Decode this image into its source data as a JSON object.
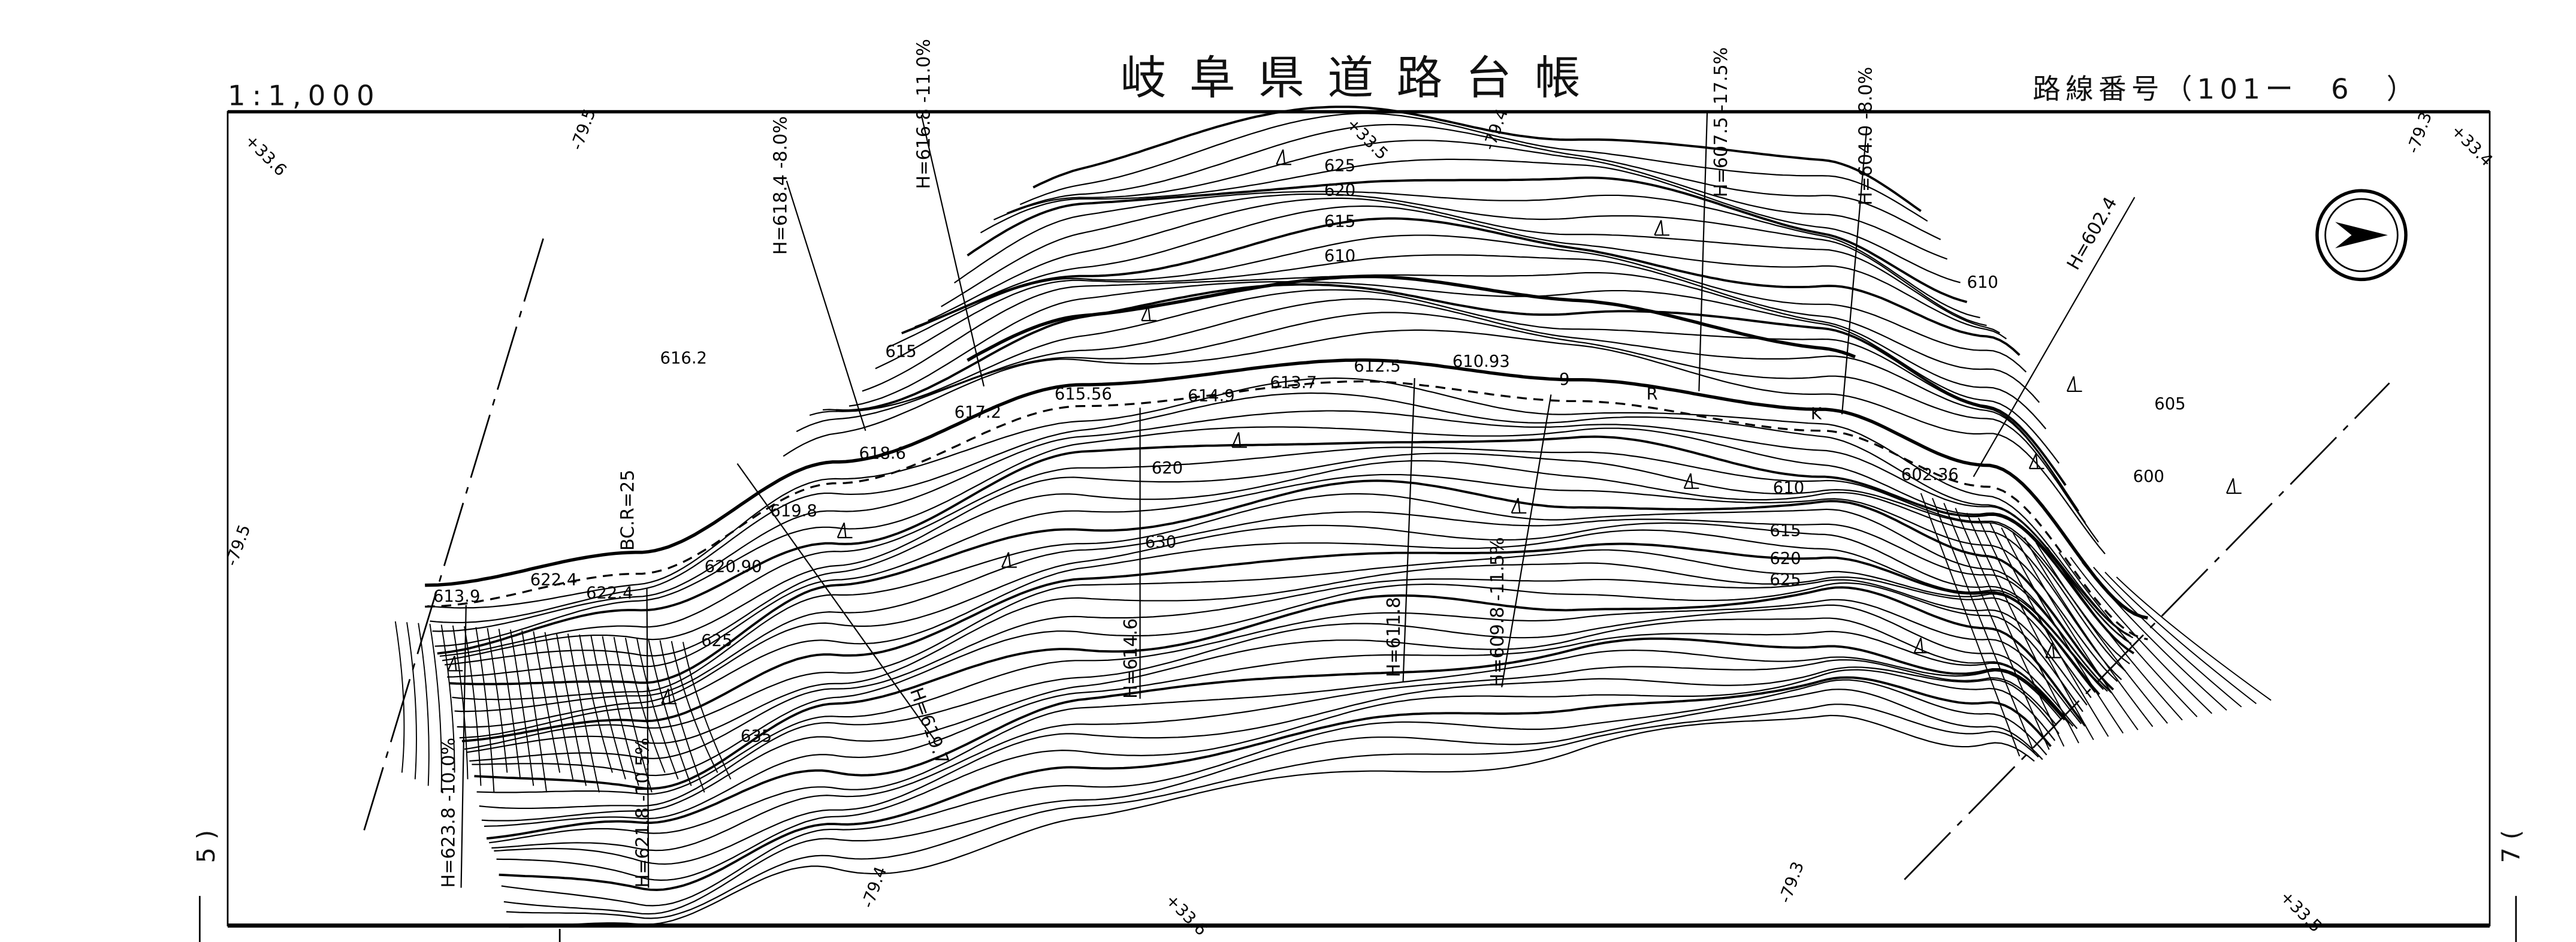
{
  "header": {
    "scale": "1:1,000",
    "title": "岐阜県道路台帳",
    "route_number": "路線番号（101ー　6　）"
  },
  "side_marks": {
    "left": "5 )",
    "right": "7 ("
  },
  "grid_labels": [
    "+33.6",
    "-79.5",
    "+33.5",
    "-79.4",
    "-79.3",
    "+33.4",
    "-79.5",
    "-79.4",
    "+33.6",
    "-79.3",
    "+33.5"
  ],
  "station_labels": [
    "H=616.8 -11.0%",
    "H=618.4 -8.0%",
    "H=607.5 -17.5%",
    "H=604.0 -8.0%",
    "H=602.4",
    "H=614.6",
    "H=611.8",
    "H=609.8 -11.5%",
    "H=619.7",
    "H=623.8 -10.0%",
    "H=621.8 -10.5%"
  ],
  "contour_labels": [
    "625",
    "620",
    "615",
    "610",
    "610",
    "615",
    "616.2",
    "617.2",
    "615.56",
    "614.9",
    "613.7",
    "612.5",
    "610.93",
    "9",
    "R",
    "K",
    "618.6",
    "620",
    "630",
    "619.8",
    "620.90",
    "622.4",
    "622.4",
    "613.9",
    "625",
    "635",
    "610",
    "615",
    "620",
    "625",
    "605",
    "600",
    "602.36"
  ],
  "curve_label": "BC.R=25",
  "north_arrow_icon": "north-arrow-icon",
  "line_color": "#000000"
}
